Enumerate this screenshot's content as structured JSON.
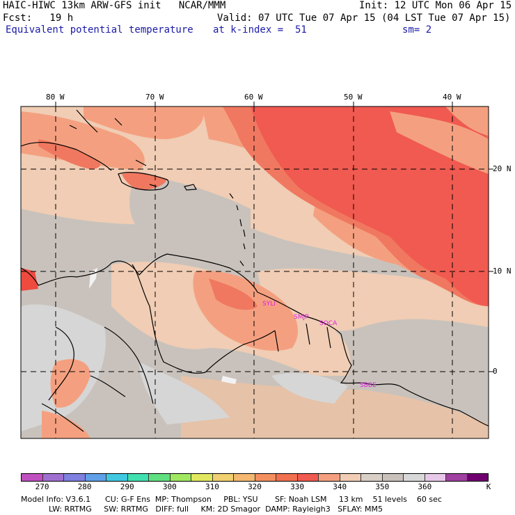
{
  "header": {
    "title_left": "HAIC-HIWC 13km ARW-GFS init   NCAR/MMM",
    "init": "Init: 12 UTC Mon 06 Apr 15",
    "fcst": "Fcst:   19 h",
    "valid": "Valid: 07 UTC Tue 07 Apr 15 (04 LST Tue 07 Apr 15)",
    "field": "Equivalent potential temperature",
    "level": "at k-index =  51",
    "smoothing": "sm= 2"
  },
  "map": {
    "lon_labels": [
      "80 W",
      "70 W",
      "60 W",
      "50 W",
      "40 W"
    ],
    "lat_labels": [
      "20 N",
      "10 N",
      "0"
    ],
    "stations": [
      "SYLI",
      "SMJP",
      "SOCA",
      "SBBE"
    ],
    "colors": {
      "grey_low": "#d6d6d6",
      "grey": "#c9c2bc",
      "tan": "#f0cdb4",
      "salmon": "#f4a080",
      "coral": "#f07860",
      "red": "#f05a50",
      "bright_red": "#ee4a3e",
      "white_cloud": "#f2f2f2"
    }
  },
  "colorbar": {
    "colors": [
      "#c050c0",
      "#a070d0",
      "#8080e0",
      "#60a0e8",
      "#40c8e0",
      "#40e0b0",
      "#60e080",
      "#a0e860",
      "#e0e860",
      "#f0d070",
      "#f4b870",
      "#f49060",
      "#f07050",
      "#f05a50",
      "#f4a080",
      "#f0cdb4",
      "#d8cfc6",
      "#c9c2bc",
      "#d8d8d8",
      "#e8c8e8",
      "#a040a0",
      "#700070"
    ],
    "ticks": [
      "270",
      "280",
      "290",
      "300",
      "310",
      "320",
      "330",
      "340",
      "350",
      "360",
      "K"
    ]
  },
  "info": {
    "line1": "Model Info: V3.6.1      CU: G-F Ens  MP: Thompson     PBL: YSU       SF: Noah LSM     13 km    51 levels    60 sec",
    "line2": "LW: RRTMG     SW: RRTMG   DIFF: full     KM: 2D Smagor  DAMP: Rayleigh3   SFLAY: MM5"
  }
}
